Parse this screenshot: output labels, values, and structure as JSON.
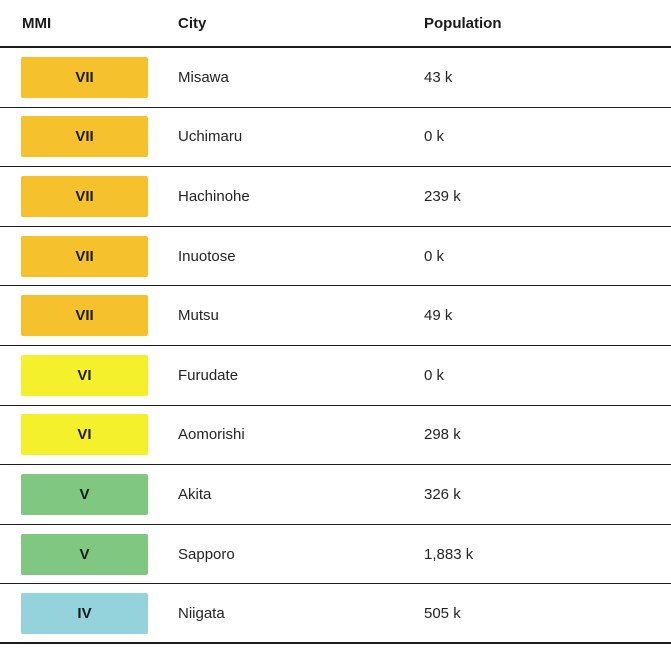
{
  "table": {
    "columns": {
      "mmi": "MMI",
      "city": "City",
      "population": "Population"
    },
    "badge_colors": {
      "VII": "#F5C12D",
      "VI": "#F4F02C",
      "V": "#80C882",
      "IV": "#94D3DC"
    },
    "rows": [
      {
        "mmi": "VII",
        "city": "Misawa",
        "population": "43 k",
        "color": "#F5C12D"
      },
      {
        "mmi": "VII",
        "city": "Uchimaru",
        "population": "0 k",
        "color": "#F5C12D"
      },
      {
        "mmi": "VII",
        "city": "Hachinohe",
        "population": "239 k",
        "color": "#F5C12D"
      },
      {
        "mmi": "VII",
        "city": "Inuotose",
        "population": "0 k",
        "color": "#F5C12D"
      },
      {
        "mmi": "VII",
        "city": "Mutsu",
        "population": "49 k",
        "color": "#F5C12D"
      },
      {
        "mmi": "VI",
        "city": "Furudate",
        "population": "0 k",
        "color": "#F4F02C"
      },
      {
        "mmi": "VI",
        "city": "Aomorishi",
        "population": "298 k",
        "color": "#F4F02C"
      },
      {
        "mmi": "V",
        "city": "Akita",
        "population": "326 k",
        "color": "#80C882"
      },
      {
        "mmi": "V",
        "city": "Sapporo",
        "population": "1,883 k",
        "color": "#80C882"
      },
      {
        "mmi": "IV",
        "city": "Niigata",
        "population": "505 k",
        "color": "#94D3DC"
      }
    ]
  }
}
